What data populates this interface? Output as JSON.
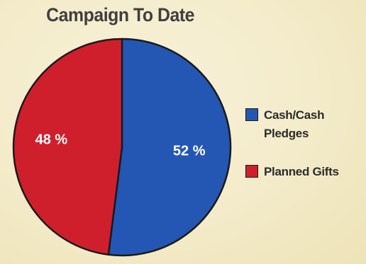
{
  "chart_data": {
    "type": "pie",
    "title": "Campaign To Date",
    "slices": [
      {
        "name": "Cash/Cash Pledges",
        "value": 52,
        "label": "52 %",
        "color": "#2456b4"
      },
      {
        "name": "Planned Gifts",
        "value": 48,
        "label": "48 %",
        "color": "#d01f2c"
      }
    ],
    "legend": {
      "placement": "right"
    },
    "outline_color": "#1a1a1a"
  }
}
